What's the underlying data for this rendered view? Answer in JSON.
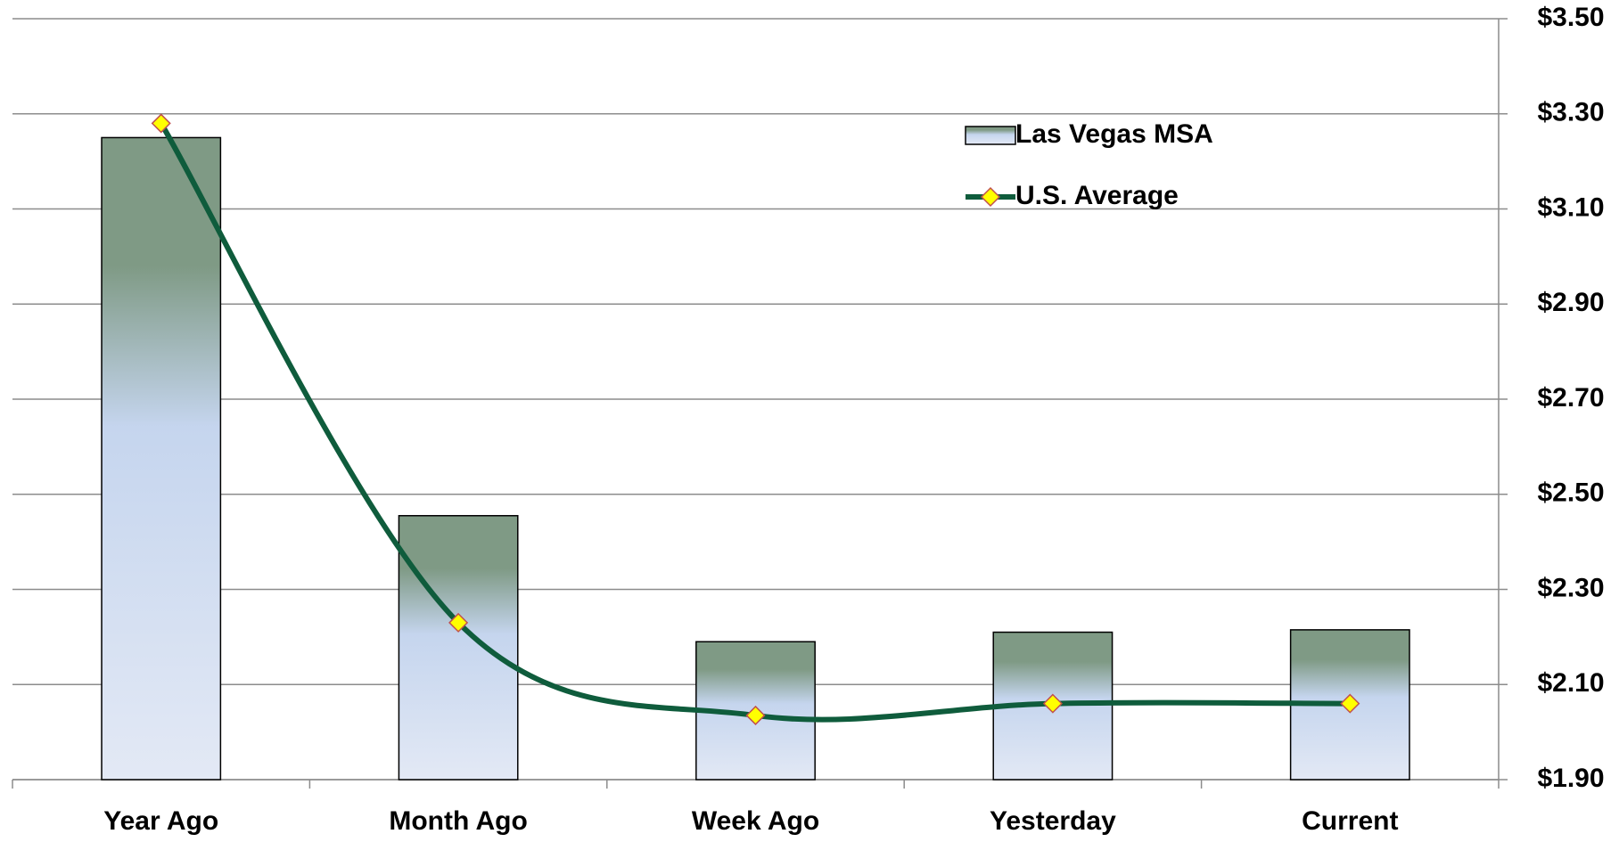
{
  "chart_data": {
    "type": "bar",
    "categories": [
      "Year Ago",
      "Month Ago",
      "Week Ago",
      "Yesterday",
      "Current"
    ],
    "series": [
      {
        "name": "Las Vegas MSA",
        "type": "bar",
        "color": "#7f9a85",
        "values": [
          3.25,
          2.455,
          2.19,
          2.21,
          2.215
        ]
      },
      {
        "name": "U.S. Average",
        "type": "line",
        "color": "#0f5c3c",
        "values": [
          3.28,
          2.23,
          2.035,
          2.06,
          2.06
        ]
      }
    ],
    "ylim": [
      1.9,
      3.5
    ],
    "yticks": [
      {
        "value": 1.9,
        "label": "$1.90"
      },
      {
        "value": 2.1,
        "label": "$2.10"
      },
      {
        "value": 2.3,
        "label": "$2.30"
      },
      {
        "value": 2.5,
        "label": "$2.50"
      },
      {
        "value": 2.7,
        "label": "$2.70"
      },
      {
        "value": 2.9,
        "label": "$2.90"
      },
      {
        "value": 3.1,
        "label": "$3.10"
      },
      {
        "value": 3.3,
        "label": "$3.30"
      },
      {
        "value": 3.5,
        "label": "$3.50"
      }
    ],
    "y_axis_side": "right",
    "grid": true,
    "legend": "top-right",
    "smooth": true
  }
}
